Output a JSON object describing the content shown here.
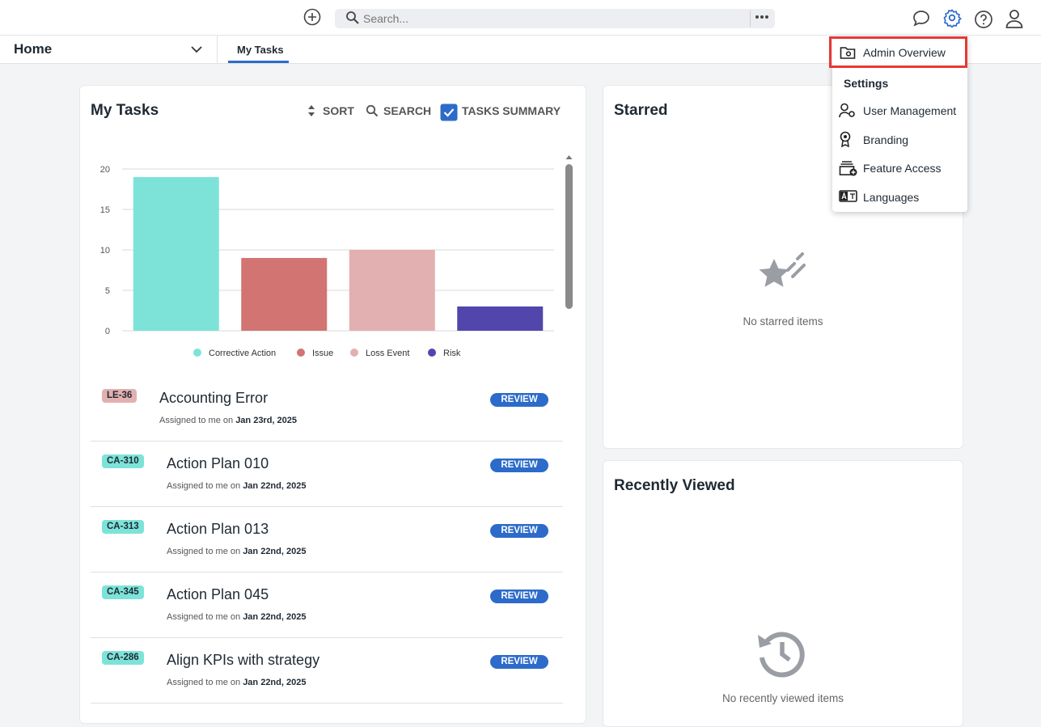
{
  "top_bar": {
    "search_placeholder": "Search..."
  },
  "nav": {
    "home": "Home",
    "tab": "My Tasks"
  },
  "my_tasks": {
    "title": "My Tasks",
    "actions": [
      "SORT",
      "SEARCH",
      "TASKS SUMMARY"
    ],
    "tasks": [
      {
        "tag": "LE-36",
        "tag_color": "#e2b0b0",
        "title": "Accounting Error",
        "status": "REVIEW",
        "assigned": "Assigned to me on",
        "date": "Jan 23rd, 2025"
      },
      {
        "tag": "CA-310",
        "tag_color": "#7de3d8",
        "title": "Action Plan 010",
        "status": "REVIEW",
        "assigned": "Assigned to me on",
        "date": "Jan 22nd, 2025"
      },
      {
        "tag": "CA-313",
        "tag_color": "#7de3d8",
        "title": "Action Plan 013",
        "status": "REVIEW",
        "assigned": "Assigned to me on",
        "date": "Jan 22nd, 2025"
      },
      {
        "tag": "CA-345",
        "tag_color": "#7de3d8",
        "title": "Action Plan 045",
        "status": "REVIEW",
        "assigned": "Assigned to me on",
        "date": "Jan 22nd, 2025"
      },
      {
        "tag": "CA-286",
        "tag_color": "#7de3d8",
        "title": "Align KPIs with strategy",
        "status": "REVIEW",
        "assigned": "Assigned to me on",
        "date": "Jan 22nd, 2025"
      }
    ]
  },
  "chart_data": {
    "type": "bar",
    "categories": [
      "Corrective Action",
      "Issue",
      "Loss Event",
      "Risk"
    ],
    "values": [
      19,
      9,
      10,
      3
    ],
    "colors": [
      "#7de3d8",
      "#d27472",
      "#e2b0b0",
      "#5246ad"
    ],
    "ylim": [
      0,
      20
    ],
    "yticks": [
      0,
      5,
      10,
      15,
      20
    ],
    "grid": true,
    "legend": "bottom"
  },
  "starred": {
    "title": "Starred",
    "empty": "No starred items"
  },
  "recently_viewed": {
    "title": "Recently Viewed",
    "empty": "No recently viewed items"
  },
  "menu": {
    "admin": "Admin Overview",
    "section": "Settings",
    "items": [
      "User Management",
      "Branding",
      "Feature Access",
      "Languages"
    ]
  }
}
